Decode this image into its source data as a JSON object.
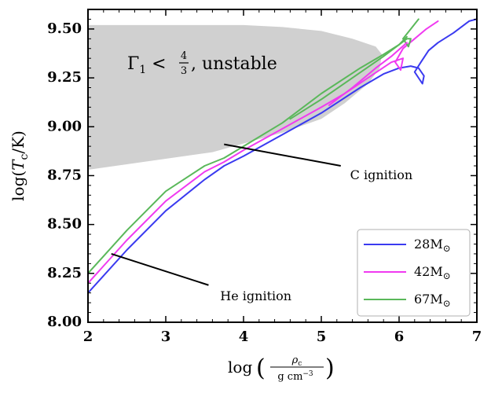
{
  "chart_data": {
    "type": "line",
    "title": "",
    "xlabel": {
      "text": "log",
      "numerator": "ρ",
      "numerator_sub": "c",
      "denominator": "g cm",
      "denominator_sup": "−3"
    },
    "ylabel": {
      "text_pre": "log(",
      "symbol": "T",
      "sub": "c",
      "text_post": "/K)"
    },
    "xlim": [
      2,
      7
    ],
    "ylim": [
      8.0,
      9.6
    ],
    "xticks": [
      2,
      3,
      4,
      5,
      6,
      7
    ],
    "xtick_labels": [
      "2",
      "3",
      "4",
      "5",
      "6",
      "7"
    ],
    "yticks": [
      8.0,
      8.25,
      8.5,
      8.75,
      9.0,
      9.25,
      9.5
    ],
    "ytick_labels": [
      "8.00",
      "8.25",
      "8.50",
      "8.75",
      "9.00",
      "9.25",
      "9.50"
    ],
    "grid": false,
    "legend_position": "bottom-right",
    "unstable_region": {
      "label_prefix": "Γ",
      "label_sub": "1",
      "label_rel": " < ",
      "label_num": "4",
      "label_den": "3",
      "label_suffix": ", unstable",
      "color": "#d0d0d0",
      "x": [
        2.0,
        2.0,
        2.75,
        3.0,
        3.4,
        4.0,
        4.5,
        5.0,
        5.4,
        5.7,
        5.78,
        5.75,
        5.6,
        5.3,
        5.0,
        4.5,
        3.6,
        2.0
      ],
      "y": [
        8.78,
        9.52,
        9.52,
        9.52,
        9.52,
        9.52,
        9.51,
        9.49,
        9.45,
        9.41,
        9.37,
        9.3,
        9.22,
        9.12,
        9.04,
        8.97,
        8.87,
        8.78
      ]
    },
    "annotations": [
      {
        "text": "C ignition",
        "line_x": [
          3.75,
          5.25
        ],
        "line_y": [
          8.91,
          8.8
        ],
        "text_x": 5.37,
        "text_y": 8.75
      },
      {
        "text": "He ignition",
        "line_x": [
          2.3,
          3.55
        ],
        "line_y": [
          8.35,
          8.19
        ],
        "text_x": 3.7,
        "text_y": 8.13
      }
    ],
    "series": [
      {
        "name": "28M",
        "name_sub": "⊙",
        "color": "#3a3af0",
        "x": [
          2.0,
          2.5,
          3.0,
          3.5,
          3.75,
          4.0,
          4.5,
          5.0,
          5.5,
          5.8,
          6.0,
          6.15,
          6.25,
          6.32,
          6.3,
          6.2,
          6.28,
          6.38,
          6.5,
          6.7,
          6.9,
          7.0
        ],
        "y": [
          8.15,
          8.37,
          8.57,
          8.73,
          8.8,
          8.85,
          8.96,
          9.07,
          9.2,
          9.27,
          9.3,
          9.31,
          9.3,
          9.26,
          9.22,
          9.28,
          9.33,
          9.39,
          9.43,
          9.48,
          9.54,
          9.55
        ]
      },
      {
        "name": "42M",
        "name_sub": "⊙",
        "color": "#f03af0",
        "x": [
          2.0,
          2.5,
          3.0,
          3.5,
          3.75,
          4.0,
          4.5,
          5.0,
          5.3,
          5.6,
          5.9,
          6.05,
          6.02,
          5.95,
          6.05,
          6.2,
          6.35,
          6.5
        ],
        "y": [
          8.2,
          8.42,
          8.62,
          8.77,
          8.82,
          8.88,
          8.99,
          9.1,
          9.17,
          9.25,
          9.33,
          9.35,
          9.29,
          9.33,
          9.4,
          9.45,
          9.5,
          9.54
        ]
      },
      {
        "name": "67M",
        "name_sub": "⊙",
        "color": "#5ab85a",
        "x": [
          2.0,
          2.5,
          3.0,
          3.5,
          3.75,
          4.0,
          4.5,
          5.0,
          5.5,
          5.8,
          6.0,
          6.1,
          6.15,
          6.12,
          6.05,
          6.15,
          6.25
        ],
        "y": [
          8.25,
          8.47,
          8.67,
          8.8,
          8.84,
          8.9,
          9.02,
          9.17,
          9.3,
          9.37,
          9.42,
          9.45,
          9.45,
          9.41,
          9.45,
          9.5,
          9.55
        ]
      }
    ],
    "extra_tracks": [
      {
        "series_index": 2,
        "x": [
          4.6,
          5.0,
          5.4,
          5.8,
          6.0,
          6.1
        ],
        "y": [
          9.04,
          9.14,
          9.25,
          9.36,
          9.42,
          9.46
        ]
      },
      {
        "series_index": 1,
        "x": [
          5.1,
          5.4,
          5.7,
          5.9,
          6.1
        ],
        "y": [
          9.11,
          9.2,
          9.3,
          9.36,
          9.43
        ]
      }
    ]
  }
}
